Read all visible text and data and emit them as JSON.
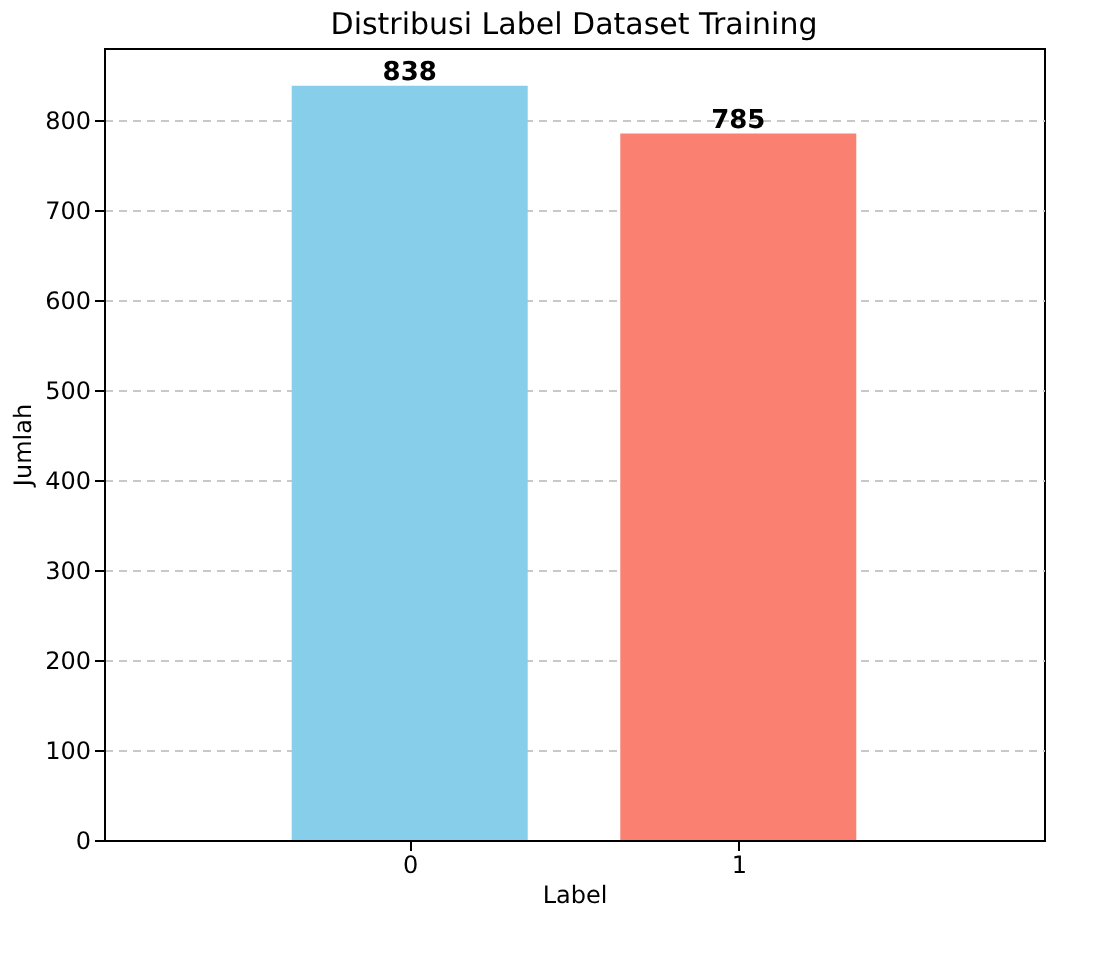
{
  "chart_data": {
    "type": "bar",
    "title": "Distribusi Label Dataset Training",
    "xlabel": "Label",
    "ylabel": "Jumlah",
    "categories": [
      "0",
      "1"
    ],
    "values": [
      838,
      785
    ],
    "colors": [
      "#87ceeb",
      "#fa8072"
    ],
    "ylim": [
      0,
      880
    ],
    "yticks": [
      0,
      100,
      200,
      300,
      400,
      500,
      600,
      700,
      800
    ],
    "grid": "y",
    "data_labels": true
  }
}
